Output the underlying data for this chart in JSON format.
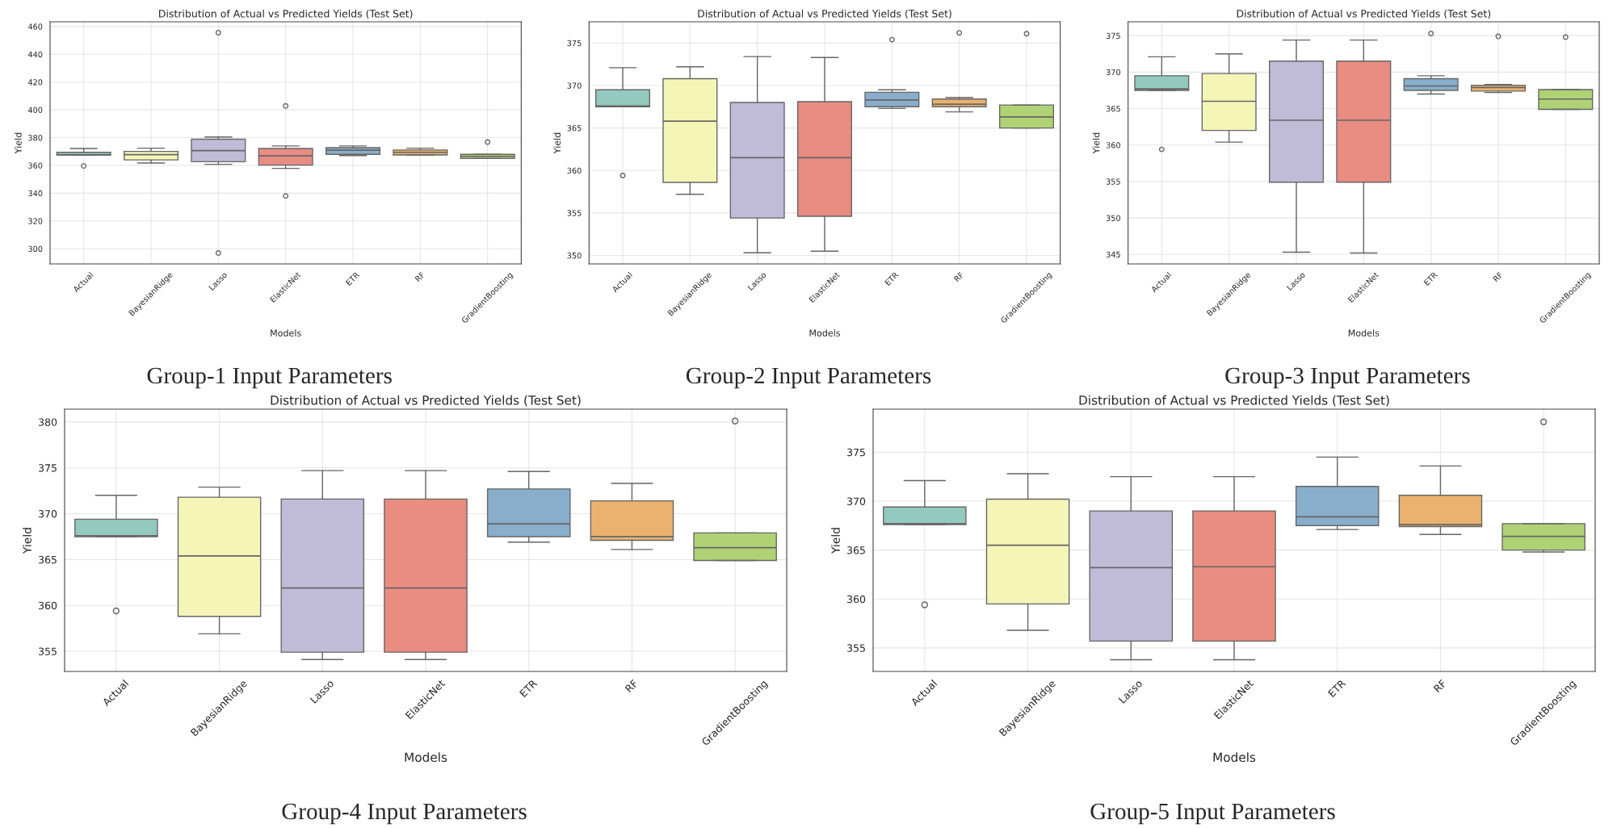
{
  "chart_data": [
    {
      "type": "box",
      "title": "Distribution of Actual vs Predicted Yields (Test Set)",
      "xlabel": "Models",
      "ylabel": "Yield",
      "categories": [
        "Actual",
        "BayesianRidge",
        "Lasso",
        "ElasticNet",
        "ETR",
        "RF",
        "GradientBoosting"
      ],
      "colors": [
        "#93c9bf",
        "#f5f5b8",
        "#c0bcd7",
        "#e98c81",
        "#88aecb",
        "#eab26e",
        "#afd275"
      ],
      "boxes": [
        {
          "low": 367.5,
          "q1": 367.5,
          "median": 367.6,
          "q3": 369.4,
          "high": 372.2,
          "outliers": [
            359.6
          ]
        },
        {
          "low": 361.7,
          "q1": 364.0,
          "median": 367.8,
          "q3": 370.1,
          "high": 372.4
        },
        {
          "low": 360.8,
          "q1": 362.7,
          "median": 370.7,
          "q3": 378.9,
          "high": 380.5,
          "outliers": [
            455.6,
            296.9
          ]
        },
        {
          "low": 357.9,
          "q1": 360.2,
          "median": 366.9,
          "q3": 372.2,
          "high": 374.0,
          "outliers": [
            402.8,
            338.0
          ]
        },
        {
          "low": 367.1,
          "q1": 368.0,
          "median": 370.9,
          "q3": 372.8,
          "high": 374.0
        },
        {
          "low": 367.3,
          "q1": 367.5,
          "median": 369.4,
          "q3": 371.1,
          "high": 372.4
        },
        {
          "low": 365.0,
          "q1": 365.0,
          "median": 366.5,
          "q3": 368.0,
          "high": 368.0,
          "outliers": [
            376.8
          ]
        }
      ],
      "ylim": [
        289.1,
        463.4
      ],
      "yticks": [
        300,
        320,
        340,
        360,
        380,
        400,
        420,
        440,
        460
      ],
      "grid": true,
      "annotations": [
        "Group-1 Input Parameters"
      ]
    },
    {
      "type": "box",
      "title": "Distribution of Actual vs Predicted Yields (Test Set)",
      "xlabel": "Models",
      "ylabel": "Yield",
      "categories": [
        "Actual",
        "BayesianRidge",
        "Lasso",
        "ElasticNet",
        "ETR",
        "RF",
        "GradientBoosting"
      ],
      "colors": [
        "#93c9bf",
        "#f5f5b8",
        "#c0bcd7",
        "#e98c81",
        "#88aecb",
        "#eab26e",
        "#afd275"
      ],
      "boxes": [
        {
          "low": 367.5,
          "q1": 367.5,
          "median": 367.6,
          "q3": 369.5,
          "high": 372.1,
          "outliers": [
            359.4
          ]
        },
        {
          "low": 357.2,
          "q1": 358.6,
          "median": 365.8,
          "q3": 370.8,
          "high": 372.2
        },
        {
          "low": 350.3,
          "q1": 354.4,
          "median": 361.5,
          "q3": 368.0,
          "high": 373.4
        },
        {
          "low": 350.5,
          "q1": 354.6,
          "median": 361.5,
          "q3": 368.1,
          "high": 373.3
        },
        {
          "low": 367.3,
          "q1": 367.5,
          "median": 368.3,
          "q3": 369.2,
          "high": 369.5,
          "outliers": [
            375.4
          ]
        },
        {
          "low": 366.9,
          "q1": 367.5,
          "median": 367.8,
          "q3": 368.4,
          "high": 368.6,
          "outliers": [
            376.2
          ]
        },
        {
          "low": 365.0,
          "q1": 365.0,
          "median": 366.3,
          "q3": 367.7,
          "high": 367.7,
          "outliers": [
            376.1
          ]
        }
      ],
      "ylim": [
        349.0,
        377.5
      ],
      "yticks": [
        350,
        355,
        360,
        365,
        370,
        375
      ],
      "grid": true,
      "annotations": [
        "Group-2 Input Parameters"
      ]
    },
    {
      "type": "box",
      "title": "Distribution of Actual vs Predicted Yields (Test Set)",
      "xlabel": "Models",
      "ylabel": "Yield",
      "categories": [
        "Actual",
        "BayesianRidge",
        "Lasso",
        "ElasticNet",
        "ETR",
        "RF",
        "GradientBoosting"
      ],
      "colors": [
        "#93c9bf",
        "#f5f5b8",
        "#c0bcd7",
        "#e98c81",
        "#88aecb",
        "#eab26e",
        "#afd275"
      ],
      "boxes": [
        {
          "low": 367.5,
          "q1": 367.5,
          "median": 367.7,
          "q3": 369.5,
          "high": 372.1,
          "outliers": [
            359.4
          ]
        },
        {
          "low": 360.4,
          "q1": 362.0,
          "median": 366.0,
          "q3": 369.8,
          "high": 372.5
        },
        {
          "low": 345.3,
          "q1": 354.9,
          "median": 363.4,
          "q3": 371.5,
          "high": 374.4
        },
        {
          "low": 345.2,
          "q1": 354.9,
          "median": 363.4,
          "q3": 371.5,
          "high": 374.4
        },
        {
          "low": 367.0,
          "q1": 367.5,
          "median": 368.1,
          "q3": 369.1,
          "high": 369.5,
          "outliers": [
            375.3
          ]
        },
        {
          "low": 367.2,
          "q1": 367.4,
          "median": 367.9,
          "q3": 368.2,
          "high": 368.3,
          "outliers": [
            374.9
          ]
        },
        {
          "low": 364.9,
          "q1": 364.9,
          "median": 366.3,
          "q3": 367.6,
          "high": 367.6,
          "outliers": [
            374.8
          ]
        }
      ],
      "ylim": [
        343.7,
        376.9
      ],
      "yticks": [
        345,
        350,
        355,
        360,
        365,
        370,
        375
      ],
      "grid": true,
      "annotations": [
        "Group-3 Input Parameters"
      ]
    },
    {
      "type": "box",
      "title": "Distribution of Actual vs Predicted Yields (Test Set)",
      "xlabel": "Models",
      "ylabel": "Yield",
      "categories": [
        "Actual",
        "BayesianRidge",
        "Lasso",
        "ElasticNet",
        "ETR",
        "RF",
        "GradientBoosting"
      ],
      "colors": [
        "#93c9bf",
        "#f5f5b8",
        "#c0bcd7",
        "#e98c81",
        "#88aecb",
        "#eab26e",
        "#afd275"
      ],
      "boxes": [
        {
          "low": 367.5,
          "q1": 367.5,
          "median": 367.6,
          "q3": 369.4,
          "high": 372.0,
          "outliers": [
            359.4
          ]
        },
        {
          "low": 356.9,
          "q1": 358.8,
          "median": 365.4,
          "q3": 371.8,
          "high": 372.9
        },
        {
          "low": 354.1,
          "q1": 354.9,
          "median": 361.9,
          "q3": 371.6,
          "high": 374.7
        },
        {
          "low": 354.1,
          "q1": 354.9,
          "median": 361.9,
          "q3": 371.6,
          "high": 374.7
        },
        {
          "low": 366.9,
          "q1": 367.5,
          "median": 368.9,
          "q3": 372.7,
          "high": 374.6
        },
        {
          "low": 366.1,
          "q1": 367.1,
          "median": 367.5,
          "q3": 371.4,
          "high": 373.3
        },
        {
          "low": 364.9,
          "q1": 364.9,
          "median": 366.3,
          "q3": 367.9,
          "high": 367.9,
          "outliers": [
            380.1
          ]
        }
      ],
      "ylim": [
        352.8,
        381.4
      ],
      "yticks": [
        355,
        360,
        365,
        370,
        375,
        380
      ],
      "grid": true,
      "annotations": [
        "Group-4 Input Parameters"
      ]
    },
    {
      "type": "box",
      "title": "Distribution of Actual vs Predicted Yields (Test Set)",
      "xlabel": "Models",
      "ylabel": "Yield",
      "categories": [
        "Actual",
        "BayesianRidge",
        "Lasso",
        "ElasticNet",
        "ETR",
        "RF",
        "GradientBoosting"
      ],
      "colors": [
        "#93c9bf",
        "#f5f5b8",
        "#c0bcd7",
        "#e98c81",
        "#88aecb",
        "#eab26e",
        "#afd275"
      ],
      "boxes": [
        {
          "low": 367.6,
          "q1": 367.6,
          "median": 367.7,
          "q3": 369.4,
          "high": 372.1,
          "outliers": [
            359.4
          ]
        },
        {
          "low": 356.8,
          "q1": 359.5,
          "median": 365.5,
          "q3": 370.2,
          "high": 372.8
        },
        {
          "low": 353.8,
          "q1": 355.7,
          "median": 363.2,
          "q3": 369.0,
          "high": 372.5
        },
        {
          "low": 353.8,
          "q1": 355.7,
          "median": 363.3,
          "q3": 369.0,
          "high": 372.5
        },
        {
          "low": 367.1,
          "q1": 367.5,
          "median": 368.4,
          "q3": 371.5,
          "high": 374.5
        },
        {
          "low": 366.6,
          "q1": 367.4,
          "median": 367.6,
          "q3": 370.6,
          "high": 373.6
        },
        {
          "low": 364.8,
          "q1": 365.0,
          "median": 366.4,
          "q3": 367.7,
          "high": 367.7,
          "outliers": [
            378.1
          ]
        }
      ],
      "ylim": [
        352.6,
        379.4
      ],
      "yticks": [
        355,
        360,
        365,
        370,
        375
      ],
      "grid": true,
      "annotations": [
        "Group-5 Input Parameters"
      ]
    }
  ]
}
